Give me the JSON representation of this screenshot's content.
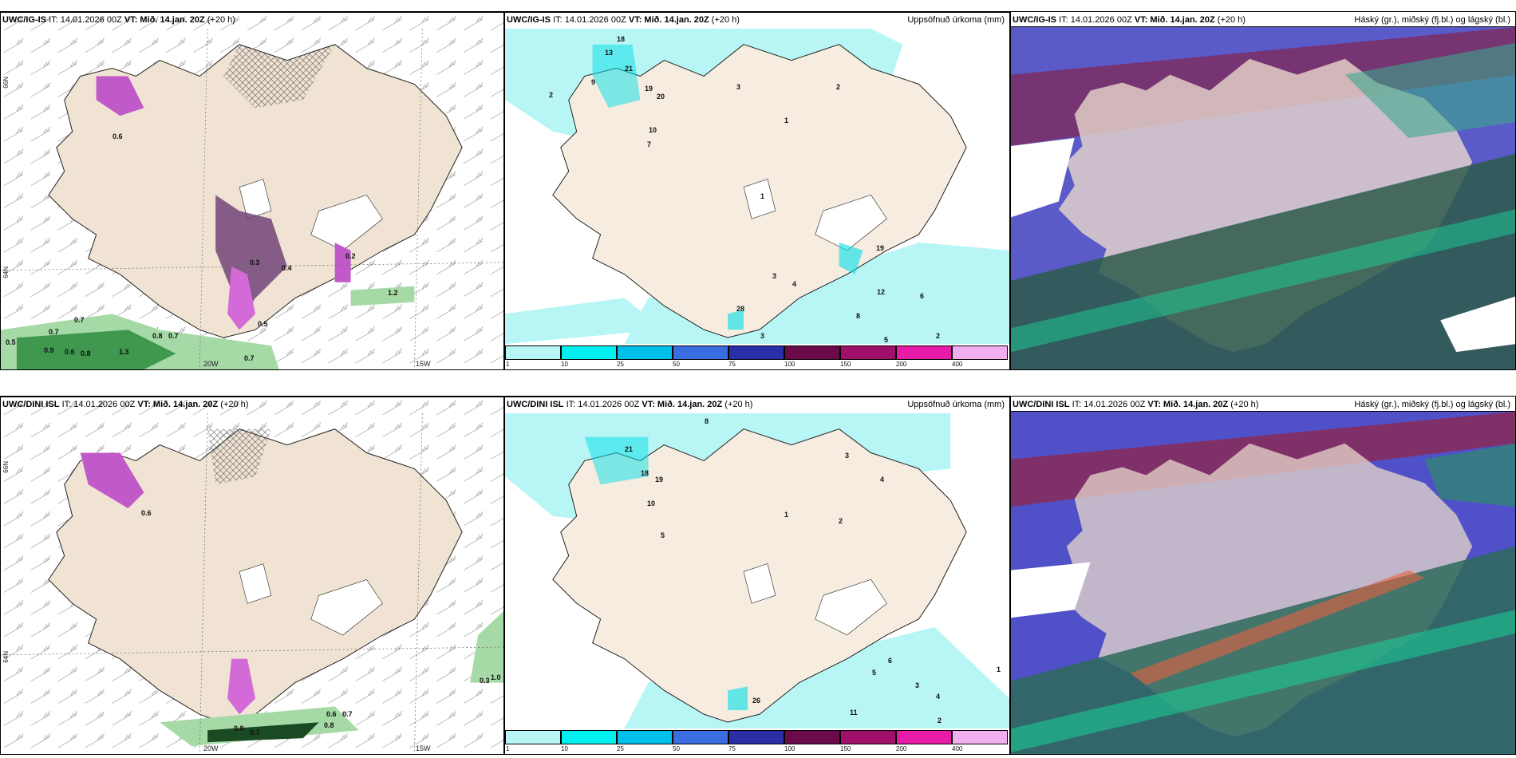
{
  "panels": [
    {
      "model": "UWC/IG-IS",
      "it": "IT: 14.01.2026 00Z",
      "vt_label": "VT:",
      "vt": "Mið. 14.jan. 20Z",
      "lead": "(+20 h)",
      "right": ""
    },
    {
      "model": "UWC/IG-IS",
      "it": "IT: 14.01.2026 00Z",
      "vt_label": "VT:",
      "vt": "Mið. 14.jan. 20Z",
      "lead": "(+20 h)",
      "right": "Uppsöfnuð úrkoma (mm)"
    },
    {
      "model": "UWC/IG-IS",
      "it": "IT: 14.01.2026 00Z",
      "vt_label": "VT:",
      "vt": "Mið. 14.jan. 20Z",
      "lead": "(+20 h)",
      "right": "Háský (gr.), miðský (fj.bl.) og lágský (bl.)"
    },
    {
      "model": "UWC/DINI ISL",
      "it": "IT: 14.01.2026 00Z",
      "vt_label": "VT:",
      "vt": "Mið. 14.jan. 20Z",
      "lead": "(+20 h)",
      "right": ""
    },
    {
      "model": "UWC/DINI ISL",
      "it": "IT: 14.01.2026 00Z",
      "vt_label": "VT:",
      "vt": "Mið. 14.jan. 20Z",
      "lead": "(+20 h)",
      "right": "Uppsöfnuð úrkoma (mm)"
    },
    {
      "model": "UWC/DINI ISL",
      "it": "IT: 14.01.2026 00Z",
      "vt_label": "VT:",
      "vt": "Mið. 14.jan. 20Z",
      "lead": "(+20 h)",
      "right": "Háský (gr.), miðský (fj.bl.) og lágský (bl.)"
    }
  ],
  "ticks": {
    "lon1": "20W",
    "lon2": "15W",
    "lat1": "66N",
    "lat2": "64N"
  },
  "colorbar": {
    "labels": [
      "1",
      "10",
      "25",
      "50",
      "75",
      "100",
      "150",
      "200",
      "400"
    ],
    "colors": [
      "#b8f5f5",
      "#00f0f0",
      "#00bfe8",
      "#3a6ee0",
      "#2a2fa8",
      "#6a0a4a",
      "#a0106a",
      "#e81aa8",
      "#f0b0f0"
    ]
  },
  "panel1_values": [
    "0.5",
    "0.7",
    "0.7",
    "0.9",
    "0.6",
    "0.8",
    "1.3",
    "0.8",
    "0.7",
    "0.7",
    "0.4",
    "0.3",
    "0.5",
    "0.2",
    "1.2",
    "0.6"
  ],
  "panel4_values": [
    "0.7",
    "0.8",
    "0.6",
    "0.7",
    "0.8",
    "1.0",
    "0.3",
    "0.6"
  ],
  "panel2_values": [
    "18",
    "13",
    "21",
    "19",
    "20",
    "9",
    "10",
    "7",
    "2",
    "3",
    "2",
    "1",
    "1",
    "28",
    "12",
    "19",
    "3",
    "4",
    "3",
    "2",
    "6",
    "8",
    "5"
  ],
  "panel5_values": [
    "8",
    "21",
    "18",
    "19",
    "10",
    "5",
    "4",
    "3",
    "2",
    "1",
    "26",
    "11",
    "5",
    "6",
    "3",
    "4",
    "2",
    "1"
  ]
}
